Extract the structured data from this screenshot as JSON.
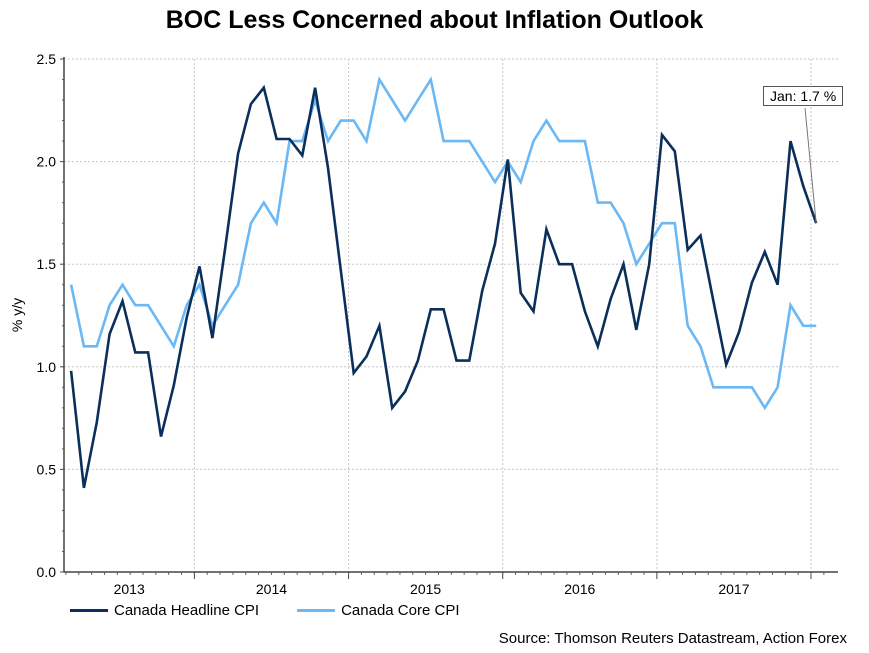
{
  "chart_data": {
    "type": "line",
    "title": "BOC Less Concerned about Inflation Outlook",
    "xlabel": "",
    "ylabel": "% y/y",
    "ylim": [
      0,
      2.5
    ],
    "yticks": [
      "0.0",
      "0.5",
      "1.0",
      "1.5",
      "2.0",
      "2.5"
    ],
    "ytick_values": [
      0,
      0.5,
      1.0,
      1.5,
      2.0,
      2.5
    ],
    "x_unit": "month index",
    "xlim": [
      -0.55,
      59.7
    ],
    "year_labels": [
      "2013",
      "2014",
      "2015",
      "2016",
      "2017"
    ],
    "year_boundaries": [
      9.6,
      21.6,
      33.6,
      45.6,
      57.6
    ],
    "grid": true,
    "legend_position": "bottom-left",
    "series": [
      {
        "name": "Canada Headline CPI",
        "color": "#0b2f5b",
        "values": [
          0.98,
          0.41,
          0.73,
          1.16,
          1.32,
          1.07,
          1.07,
          0.66,
          0.91,
          1.24,
          1.49,
          1.14,
          1.58,
          2.04,
          2.28,
          2.36,
          2.11,
          2.11,
          2.03,
          2.36,
          1.97,
          1.47,
          0.97,
          1.05,
          1.2,
          0.8,
          0.88,
          1.03,
          1.28,
          1.28,
          1.03,
          1.03,
          1.37,
          1.6,
          2.01,
          1.36,
          1.27,
          1.67,
          1.5,
          1.5,
          1.27,
          1.1,
          1.33,
          1.5,
          1.18,
          1.5,
          2.13,
          2.05,
          1.57,
          1.64,
          1.32,
          1.01,
          1.17,
          1.41,
          1.56,
          1.4,
          2.1,
          1.88,
          1.7
        ]
      },
      {
        "name": "Canada Core CPI",
        "color": "#6bb8f5",
        "values": [
          1.4,
          1.1,
          1.1,
          1.3,
          1.4,
          1.3,
          1.3,
          1.2,
          1.1,
          1.3,
          1.4,
          1.2,
          1.3,
          1.4,
          1.7,
          1.8,
          1.7,
          2.1,
          2.1,
          2.3,
          2.1,
          2.2,
          2.2,
          2.1,
          2.4,
          2.3,
          2.2,
          2.3,
          2.4,
          2.1,
          2.1,
          2.1,
          2.0,
          1.9,
          2.0,
          1.9,
          2.1,
          2.2,
          2.1,
          2.1,
          2.1,
          1.8,
          1.8,
          1.7,
          1.5,
          1.6,
          1.7,
          1.7,
          1.2,
          1.1,
          0.9,
          0.9,
          0.9,
          0.9,
          0.8,
          0.9,
          1.3,
          1.2,
          1.2
        ]
      }
    ],
    "annotation": "Jan: 1.7 %",
    "source": "Source: Thomson Reuters Datastream, Action Forex"
  }
}
